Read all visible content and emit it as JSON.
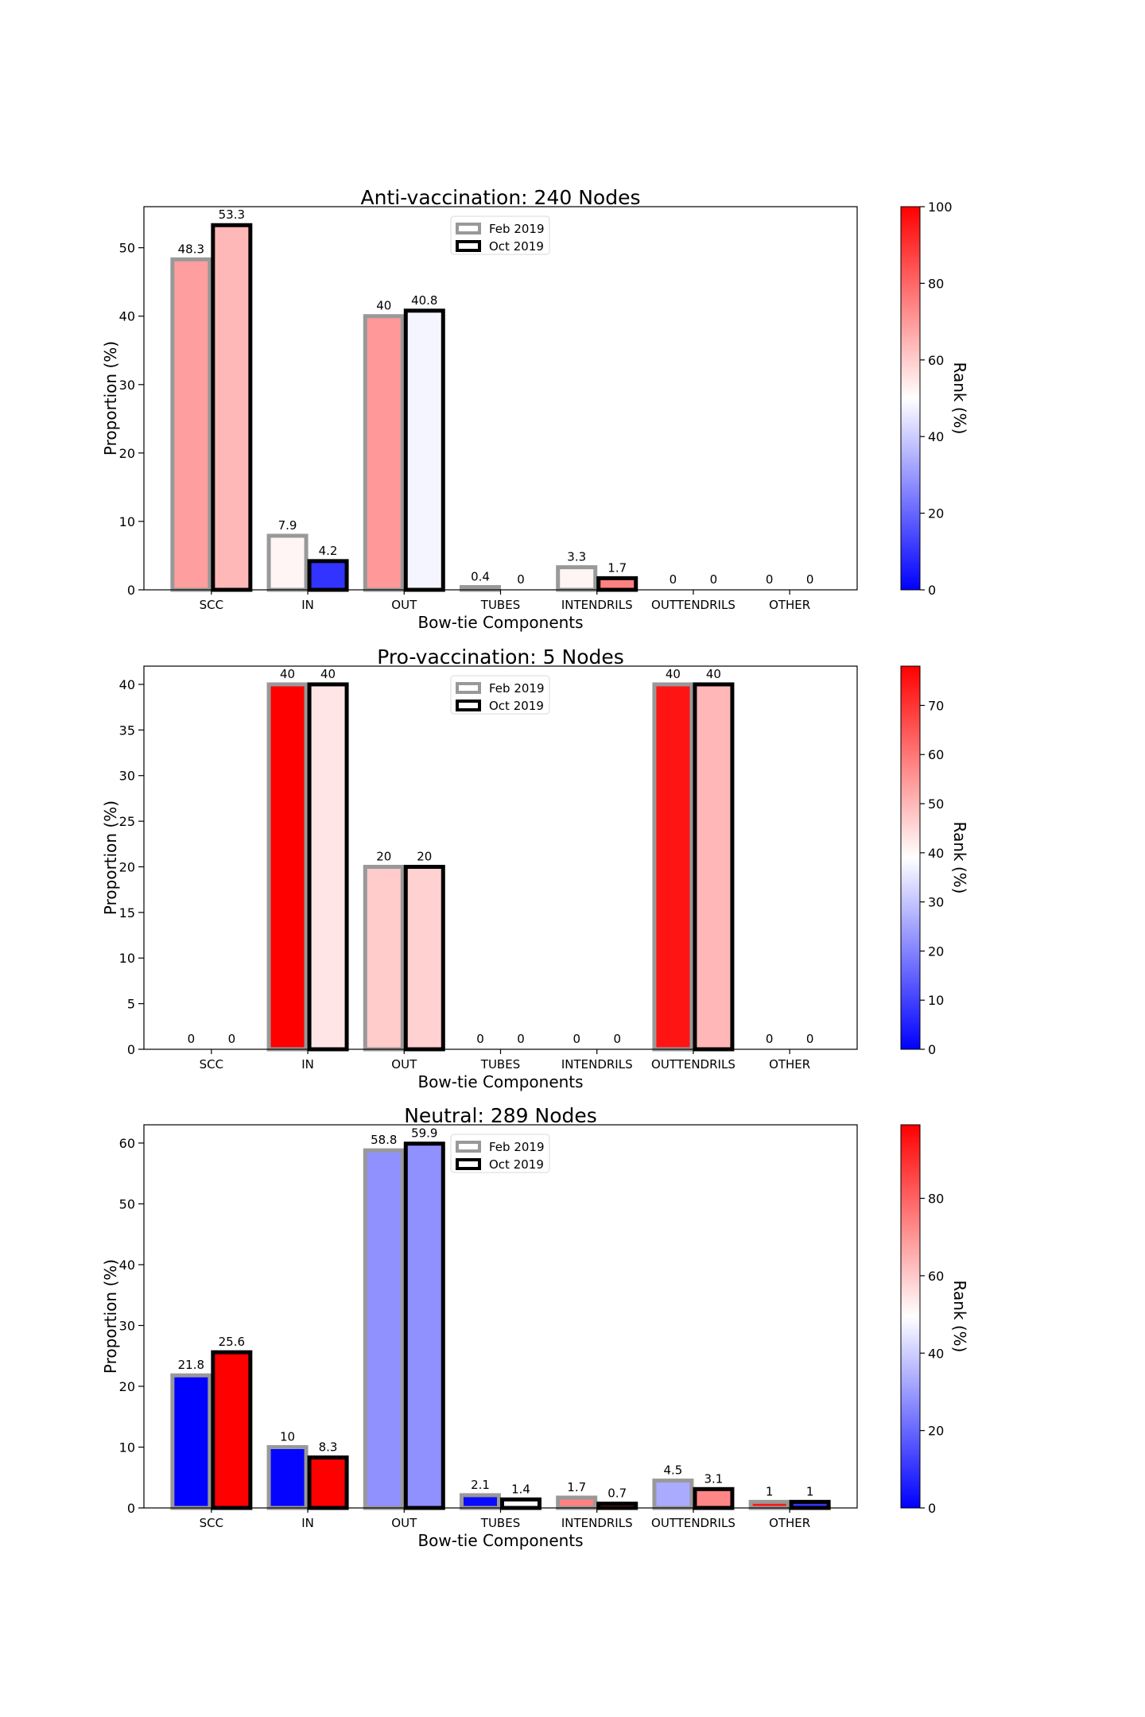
{
  "figure": {
    "legend_entries": [
      "Feb 2019",
      "Oct 2019"
    ],
    "legend_edge_colors": [
      "#999999",
      "#000000"
    ],
    "colorbar_label": "Rank (%)",
    "colormap": "bwr"
  },
  "chart_data": [
    {
      "type": "bar",
      "title": "Anti-vaccination: 240 Nodes",
      "xlabel": "Bow-tie Components",
      "ylabel": "Proportion (%)",
      "categories": [
        "SCC",
        "IN",
        "OUT",
        "TUBES",
        "INTENDRILS",
        "OUTTENDRILS",
        "OTHER"
      ],
      "ylim": [
        0,
        56
      ],
      "yticks": [
        0,
        10,
        20,
        30,
        40,
        50
      ],
      "legend_position": "top-center",
      "series": [
        {
          "name": "Feb 2019",
          "edge_color": "#999999",
          "values": [
            48.3,
            7.9,
            40,
            0.4,
            3.3,
            0,
            0
          ],
          "labels": [
            "48.3",
            "7.9",
            "40",
            "0.4",
            "3.3",
            "0",
            "0"
          ],
          "rank": [
            69,
            52,
            70,
            50,
            52,
            50,
            50
          ]
        },
        {
          "name": "Oct 2019",
          "edge_color": "#000000",
          "values": [
            53.3,
            4.2,
            40.8,
            0,
            1.7,
            0,
            0
          ],
          "labels": [
            "53.3",
            "4.2",
            "40.8",
            "0",
            "1.7",
            "0",
            "0"
          ],
          "rank": [
            64,
            10,
            48,
            50,
            75,
            50,
            50
          ]
        }
      ],
      "colorbar": {
        "min": 0,
        "max": 100,
        "ticks": [
          0,
          20,
          40,
          60,
          80,
          100
        ]
      }
    },
    {
      "type": "bar",
      "title": "Pro-vaccination: 5 Nodes",
      "xlabel": "Bow-tie Components",
      "ylabel": "Proportion (%)",
      "categories": [
        "SCC",
        "IN",
        "OUT",
        "TUBES",
        "INTENDRILS",
        "OUTTENDRILS",
        "OTHER"
      ],
      "ylim": [
        0,
        42
      ],
      "yticks": [
        0,
        5,
        10,
        15,
        20,
        25,
        30,
        35,
        40
      ],
      "legend_position": "top-center",
      "series": [
        {
          "name": "Feb 2019",
          "edge_color": "#999999",
          "values": [
            0,
            40,
            20,
            0,
            0,
            40,
            0
          ],
          "labels": [
            "0",
            "40",
            "20",
            "0",
            "0",
            "40",
            "0"
          ],
          "rank": [
            39,
            78,
            47,
            39,
            39,
            75,
            39
          ]
        },
        {
          "name": "Oct 2019",
          "edge_color": "#000000",
          "values": [
            0,
            40,
            20,
            0,
            0,
            40,
            0
          ],
          "labels": [
            "0",
            "40",
            "20",
            "0",
            "0",
            "40",
            "0"
          ],
          "rank": [
            39,
            43,
            46,
            39,
            39,
            50,
            39
          ]
        }
      ],
      "colorbar": {
        "min": 0,
        "max": 78,
        "ticks": [
          0,
          10,
          20,
          30,
          40,
          50,
          60,
          70
        ]
      }
    },
    {
      "type": "bar",
      "title": "Neutral: 289 Nodes",
      "xlabel": "Bow-tie Components",
      "ylabel": "Proportion (%)",
      "categories": [
        "SCC",
        "IN",
        "OUT",
        "TUBES",
        "INTENDRILS",
        "OUTTENDRILS",
        "OTHER"
      ],
      "ylim": [
        0,
        63
      ],
      "yticks": [
        0,
        10,
        20,
        30,
        40,
        50,
        60
      ],
      "legend_position": "top-center",
      "series": [
        {
          "name": "Feb 2019",
          "edge_color": "#999999",
          "values": [
            21.8,
            10,
            58.8,
            2.1,
            1.7,
            4.5,
            1
          ],
          "labels": [
            "21.8",
            "10",
            "58.8",
            "2.1",
            "1.7",
            "4.5",
            "1"
          ],
          "rank": [
            0,
            1,
            28,
            2,
            74,
            33,
            95
          ]
        },
        {
          "name": "Oct 2019",
          "edge_color": "#000000",
          "values": [
            25.6,
            8.3,
            59.9,
            1.4,
            0.7,
            3.1,
            1
          ],
          "labels": [
            "25.6",
            "8.3",
            "59.9",
            "1.4",
            "0.7",
            "3.1",
            "1"
          ],
          "rank": [
            99,
            99,
            28,
            50,
            85,
            73,
            10
          ]
        }
      ],
      "colorbar": {
        "min": 0,
        "max": 99,
        "ticks": [
          0,
          20,
          40,
          60,
          80
        ]
      }
    }
  ]
}
